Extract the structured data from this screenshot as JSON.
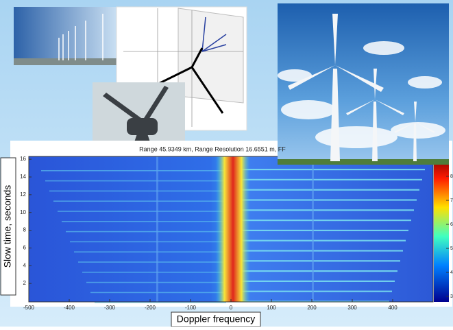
{
  "spectrogram": {
    "title": "Range 45.9349 km, Range Resolution 16.6551 m, FF",
    "x_label": "Doppler frequency",
    "y_label": "Slow time, seconds",
    "xticks": [
      -500,
      -400,
      -300,
      -200,
      -100,
      0,
      100,
      200,
      300,
      400
    ],
    "yticks": [
      2,
      4,
      6,
      8,
      10,
      12,
      14,
      16
    ],
    "colorbar_ticks": [
      3,
      4,
      5,
      6,
      7,
      8
    ]
  }
}
